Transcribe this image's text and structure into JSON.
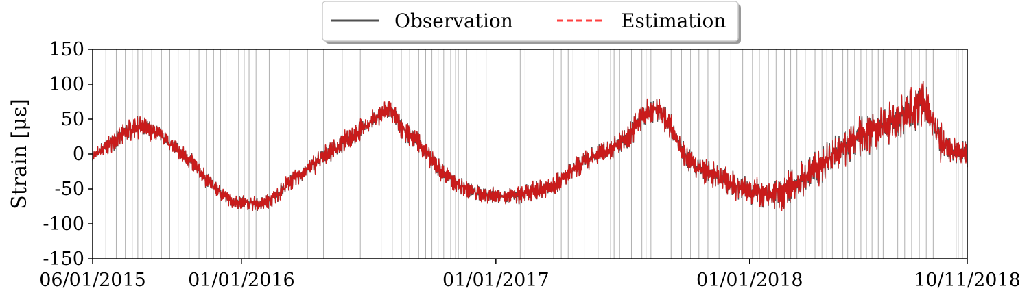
{
  "chart_data": {
    "type": "line",
    "title": "",
    "xlabel": "",
    "ylabel": "Strain [με]",
    "ylim": [
      -150,
      150
    ],
    "yticks": [
      150,
      100,
      50,
      0,
      -50,
      -100,
      -150
    ],
    "ytick_labels": [
      "150",
      "100",
      "50",
      "0",
      "-50",
      "-100",
      "-150"
    ],
    "xlim": [
      "2015-06-01",
      "2018-11-10"
    ],
    "xticks": [
      "2015-06-01",
      "2016-01-01",
      "2017-01-01",
      "2018-01-01",
      "2018-11-10"
    ],
    "xtick_labels": [
      "06/01/2015",
      "01/01/2016",
      "01/01/2017",
      "01/01/2018",
      "10/11/2018"
    ],
    "grid": false,
    "legend_position": "top-center",
    "colors": {
      "Observation": "#505050",
      "Estimation": "#ff4040",
      "overlap": "#d01818",
      "marker_lines": "#b0b0b0"
    },
    "series": [
      {
        "name": "Observation",
        "style": "solid",
        "x": [
          "2015-06-01",
          "2015-06-20",
          "2015-07-10",
          "2015-08-01",
          "2015-08-20",
          "2015-09-10",
          "2015-10-01",
          "2015-10-20",
          "2015-11-10",
          "2015-12-01",
          "2015-12-20",
          "2016-01-10",
          "2016-02-01",
          "2016-02-20",
          "2016-03-10",
          "2016-04-01",
          "2016-04-20",
          "2016-05-10",
          "2016-06-01",
          "2016-06-20",
          "2016-07-10",
          "2016-08-01",
          "2016-08-20",
          "2016-09-10",
          "2016-10-01",
          "2016-10-20",
          "2016-11-10",
          "2016-12-01",
          "2016-12-20",
          "2017-01-10",
          "2017-02-01",
          "2017-02-20",
          "2017-03-10",
          "2017-04-01",
          "2017-04-20",
          "2017-05-10",
          "2017-06-01",
          "2017-06-20",
          "2017-07-10",
          "2017-08-01",
          "2017-08-20",
          "2017-09-10",
          "2017-10-01",
          "2017-10-20",
          "2017-11-10",
          "2017-12-01",
          "2017-12-20",
          "2018-01-10",
          "2018-02-01",
          "2018-02-20",
          "2018-03-10",
          "2018-04-01",
          "2018-04-20",
          "2018-05-10",
          "2018-06-01",
          "2018-06-20",
          "2018-07-10",
          "2018-08-01",
          "2018-08-20",
          "2018-09-10",
          "2018-10-01",
          "2018-10-20",
          "2018-11-10"
        ],
        "values": [
          -5,
          10,
          25,
          40,
          35,
          25,
          5,
          -10,
          -35,
          -55,
          -68,
          -70,
          -72,
          -60,
          -40,
          -25,
          -10,
          5,
          20,
          35,
          50,
          65,
          35,
          20,
          -10,
          -30,
          -45,
          -55,
          -58,
          -60,
          -60,
          -55,
          -50,
          -40,
          -25,
          -10,
          0,
          10,
          25,
          55,
          65,
          40,
          -5,
          -20,
          -30,
          -40,
          -50,
          -55,
          -58,
          -55,
          -40,
          -25,
          -10,
          10,
          20,
          30,
          40,
          50,
          60,
          75,
          20,
          5,
          0
        ],
        "envelope": [
          8,
          12,
          15,
          15,
          14,
          12,
          12,
          12,
          12,
          10,
          10,
          10,
          10,
          12,
          12,
          14,
          14,
          14,
          15,
          15,
          14,
          14,
          15,
          15,
          14,
          14,
          12,
          12,
          12,
          12,
          12,
          14,
          14,
          14,
          15,
          15,
          15,
          15,
          18,
          18,
          20,
          18,
          16,
          16,
          18,
          18,
          20,
          20,
          22,
          24,
          26,
          28,
          28,
          28,
          28,
          30,
          30,
          30,
          32,
          32,
          28,
          22,
          20
        ]
      },
      {
        "name": "Estimation",
        "style": "dashed",
        "same_x_as": "Observation",
        "tracks": "Observation"
      }
    ],
    "vertical_marker_lines": [
      "2015-06-20",
      "2015-07-05",
      "2015-07-18",
      "2015-07-28",
      "2015-08-05",
      "2015-08-12",
      "2015-08-25",
      "2015-09-08",
      "2015-09-20",
      "2015-10-02",
      "2015-10-18",
      "2015-11-01",
      "2015-11-12",
      "2015-11-22",
      "2015-12-02",
      "2015-12-10",
      "2015-12-28",
      "2016-01-05",
      "2016-01-12",
      "2016-01-22",
      "2016-02-10",
      "2016-03-10",
      "2016-04-05",
      "2016-04-28",
      "2016-05-25",
      "2016-06-20",
      "2016-07-20",
      "2016-08-05",
      "2016-08-18",
      "2016-08-30",
      "2016-09-12",
      "2016-09-22",
      "2016-10-01",
      "2016-10-10",
      "2016-10-18",
      "2016-10-28",
      "2016-11-04",
      "2016-11-08",
      "2016-11-20",
      "2016-12-05",
      "2016-12-18",
      "2017-02-05",
      "2017-02-12",
      "2017-03-25",
      "2017-04-05",
      "2017-04-15",
      "2017-04-22",
      "2017-05-08",
      "2017-05-28",
      "2017-06-15",
      "2017-06-20",
      "2017-06-28",
      "2017-07-15",
      "2017-07-30",
      "2017-08-05",
      "2017-08-12",
      "2017-09-10",
      "2017-09-25",
      "2017-10-08",
      "2017-10-20",
      "2017-11-02",
      "2017-11-18",
      "2017-12-05",
      "2017-12-22",
      "2018-01-05",
      "2018-01-15",
      "2018-01-28",
      "2018-02-08",
      "2018-02-20",
      "2018-03-01",
      "2018-03-10",
      "2018-03-22",
      "2018-04-05",
      "2018-04-15",
      "2018-04-22",
      "2018-04-30",
      "2018-05-08",
      "2018-05-15",
      "2018-05-22",
      "2018-06-01",
      "2018-06-10",
      "2018-06-18",
      "2018-06-26",
      "2018-07-05",
      "2018-07-12",
      "2018-07-22",
      "2018-08-02",
      "2018-08-12",
      "2018-08-22",
      "2018-09-02",
      "2018-09-12",
      "2018-09-22",
      "2018-10-25",
      "2018-10-28",
      "2018-11-03"
    ]
  },
  "legend": {
    "items": [
      {
        "label": "Observation",
        "color": "#505050",
        "style": "solid"
      },
      {
        "label": "Estimation",
        "color": "#ff4040",
        "style": "dashed"
      }
    ]
  }
}
